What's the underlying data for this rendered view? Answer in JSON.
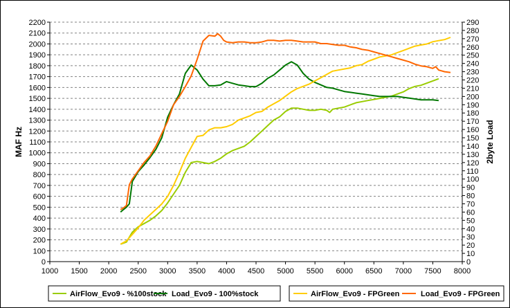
{
  "chart_data": {
    "type": "line",
    "xlim": [
      1000,
      8000
    ],
    "x_ticks": [
      1000,
      1500,
      2000,
      2500,
      3000,
      3500,
      4000,
      4500,
      5000,
      5500,
      6000,
      6500,
      7000,
      7500,
      8000
    ],
    "ylabel": "MAF Hz",
    "ylim": [
      0,
      2200
    ],
    "y_ticks": [
      0,
      100,
      200,
      300,
      400,
      500,
      600,
      700,
      800,
      900,
      1000,
      1100,
      1200,
      1300,
      1400,
      1500,
      1600,
      1700,
      1800,
      1900,
      2000,
      2100,
      2200
    ],
    "y2label": "2byte Load",
    "y2lim": [
      0,
      290
    ],
    "y2_ticks": [
      0,
      10,
      20,
      30,
      40,
      50,
      60,
      70,
      80,
      90,
      100,
      110,
      120,
      130,
      140,
      150,
      160,
      170,
      180,
      190,
      200,
      210,
      220,
      230,
      240,
      250,
      260,
      270,
      280,
      290
    ],
    "grid": "horizontal dashed",
    "legend": "bottom",
    "series": [
      {
        "name": "AirFlow_Evo9 - %100stock",
        "axis": "left",
        "color": "#99cc00",
        "x": [
          2200,
          2300,
          2400,
          2500,
          2600,
          2700,
          2800,
          2900,
          3000,
          3100,
          3200,
          3300,
          3400,
          3500,
          3600,
          3700,
          3800,
          3900,
          4000,
          4100,
          4200,
          4300,
          4400,
          4500,
          4600,
          4700,
          4800,
          4900,
          5000,
          5100,
          5200,
          5300,
          5400,
          5500,
          5600,
          5700,
          5750,
          5800,
          5900,
          6000,
          6100,
          6200,
          6300,
          6400,
          6500,
          6600,
          6700,
          6800,
          6900,
          7000,
          7100,
          7200,
          7300,
          7400,
          7500,
          7600
        ],
        "values": [
          160,
          180,
          270,
          320,
          350,
          380,
          420,
          470,
          540,
          620,
          700,
          820,
          910,
          920,
          910,
          900,
          920,
          950,
          990,
          1020,
          1040,
          1060,
          1100,
          1150,
          1200,
          1250,
          1300,
          1330,
          1380,
          1410,
          1410,
          1400,
          1390,
          1390,
          1400,
          1390,
          1370,
          1400,
          1410,
          1420,
          1440,
          1460,
          1470,
          1480,
          1490,
          1500,
          1510,
          1520,
          1540,
          1560,
          1590,
          1610,
          1620,
          1640,
          1660,
          1680
        ]
      },
      {
        "name": "Load_Evo9 - 100%stock",
        "axis": "right",
        "color": "#007700",
        "x": [
          2200,
          2250,
          2300,
          2350,
          2400,
          2500,
          2600,
          2700,
          2800,
          2900,
          3000,
          3100,
          3200,
          3300,
          3400,
          3500,
          3600,
          3700,
          3800,
          3900,
          4000,
          4100,
          4200,
          4300,
          4400,
          4500,
          4600,
          4700,
          4800,
          4900,
          5000,
          5100,
          5200,
          5300,
          5400,
          5500,
          5600,
          5700,
          5800,
          5900,
          6000,
          6100,
          6200,
          6300,
          6400,
          6500,
          6600,
          6700,
          6800,
          6900,
          7000,
          7100,
          7200,
          7300,
          7400,
          7500,
          7600
        ],
        "values": [
          60,
          63,
          66,
          70,
          97,
          109,
          117,
          126,
          136,
          150,
          175,
          190,
          203,
          228,
          238,
          232,
          221,
          213,
          213,
          214,
          218,
          216,
          214,
          213,
          212,
          212,
          216,
          222,
          226,
          232,
          238,
          242,
          238,
          228,
          221,
          217,
          214,
          211,
          210,
          208,
          206,
          205,
          204,
          203,
          202,
          201,
          200,
          200,
          200,
          200,
          199,
          198,
          197,
          196,
          196,
          196,
          195
        ]
      },
      {
        "name": "AirFlow_Evo9 - FPGreen",
        "axis": "left",
        "color": "#ffcc00",
        "x": [
          2200,
          2300,
          2400,
          2500,
          2600,
          2700,
          2800,
          2900,
          3000,
          3100,
          3200,
          3300,
          3400,
          3500,
          3600,
          3700,
          3800,
          3900,
          4000,
          4100,
          4200,
          4300,
          4400,
          4500,
          4600,
          4700,
          4800,
          4900,
          5000,
          5100,
          5200,
          5300,
          5400,
          5500,
          5600,
          5700,
          5800,
          5900,
          6000,
          6100,
          6200,
          6300,
          6400,
          6500,
          6600,
          6700,
          6800,
          6900,
          7000,
          7100,
          7200,
          7300,
          7400,
          7500,
          7600,
          7700,
          7800
        ],
        "values": [
          160,
          190,
          250,
          310,
          380,
          430,
          480,
          530,
          600,
          700,
          820,
          950,
          1050,
          1150,
          1160,
          1210,
          1230,
          1230,
          1240,
          1260,
          1300,
          1320,
          1340,
          1370,
          1380,
          1420,
          1450,
          1480,
          1520,
          1560,
          1590,
          1610,
          1630,
          1660,
          1690,
          1720,
          1750,
          1760,
          1770,
          1780,
          1800,
          1810,
          1840,
          1860,
          1880,
          1890,
          1900,
          1920,
          1940,
          1960,
          1980,
          1990,
          2000,
          2020,
          2030,
          2040,
          2060
        ]
      },
      {
        "name": "Load_Evo9 - FPGreen",
        "axis": "right",
        "color": "#ff6600",
        "x": [
          2200,
          2250,
          2300,
          2350,
          2400,
          2500,
          2600,
          2700,
          2800,
          2900,
          3000,
          3100,
          3200,
          3300,
          3400,
          3500,
          3600,
          3700,
          3800,
          3850,
          3900,
          3950,
          4000,
          4100,
          4200,
          4300,
          4400,
          4500,
          4600,
          4700,
          4800,
          4900,
          5000,
          5100,
          5200,
          5300,
          5400,
          5500,
          5600,
          5700,
          5800,
          5900,
          6000,
          6100,
          6200,
          6300,
          6400,
          6500,
          6600,
          6700,
          6800,
          6900,
          7000,
          7100,
          7200,
          7300,
          7400,
          7500,
          7550,
          7600,
          7700,
          7800
        ],
        "values": [
          63,
          65,
          68,
          93,
          100,
          110,
          120,
          128,
          140,
          155,
          170,
          190,
          200,
          212,
          225,
          245,
          267,
          274,
          273,
          276,
          273,
          268,
          266,
          265,
          266,
          266,
          265,
          265,
          266,
          268,
          268,
          267,
          268,
          268,
          267,
          266,
          266,
          266,
          264,
          264,
          263,
          262,
          262,
          260,
          259,
          257,
          256,
          254,
          252,
          250,
          248,
          246,
          244,
          242,
          239,
          237,
          236,
          234,
          236,
          232,
          230,
          229
        ]
      }
    ]
  }
}
